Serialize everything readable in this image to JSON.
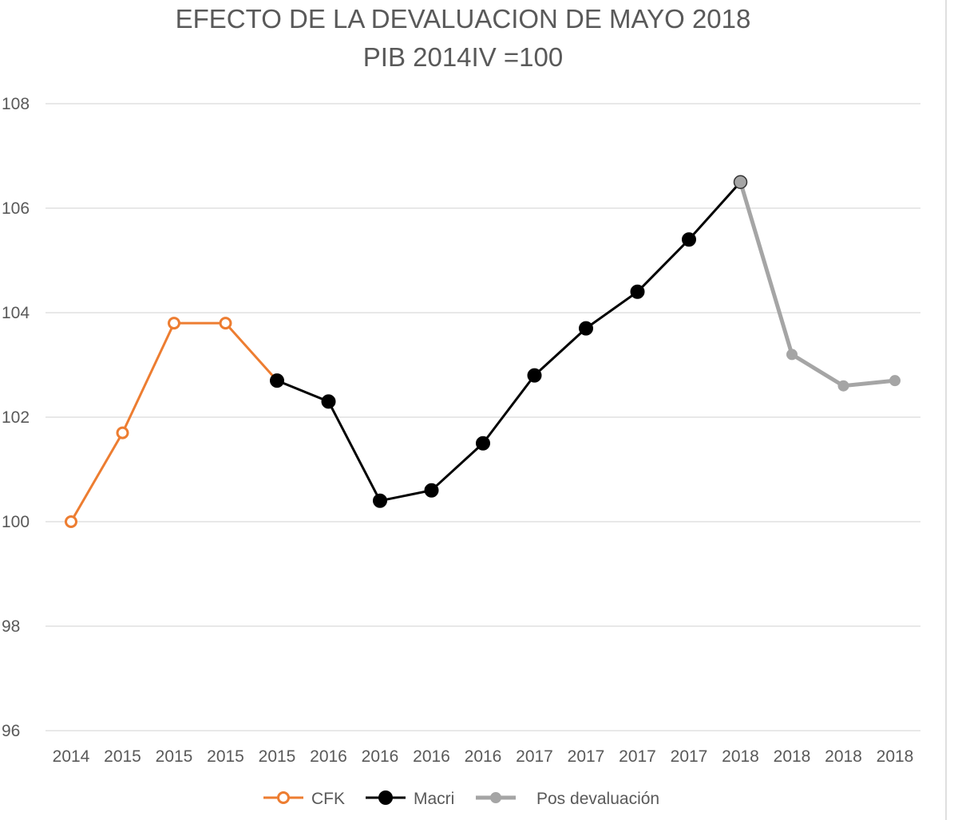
{
  "chart_data": {
    "type": "line",
    "title": "EFECTO DE LA DEVALUACION DE MAYO 2018",
    "subtitle": "PIB 2014IV =100",
    "xlabel": "",
    "ylabel": "",
    "categories": [
      "2014",
      "2015",
      "2015",
      "2015",
      "2015",
      "2016",
      "2016",
      "2016",
      "2016",
      "2017",
      "2017",
      "2017",
      "2017",
      "2018",
      "2018",
      "2018",
      "2018"
    ],
    "ylim": [
      96,
      108
    ],
    "yticks": [
      96,
      98,
      100,
      102,
      104,
      106,
      108
    ],
    "grid": true,
    "legend_position": "bottom",
    "series": [
      {
        "name": "CFK",
        "color": "#ED7D31",
        "marker": "hollow-circle",
        "values": [
          100.0,
          101.7,
          103.8,
          103.8,
          102.7,
          null,
          null,
          null,
          null,
          null,
          null,
          null,
          null,
          null,
          null,
          null,
          null
        ]
      },
      {
        "name": "Macri",
        "color": "#000000",
        "marker": "filled-circle",
        "values": [
          null,
          null,
          null,
          null,
          102.7,
          102.3,
          100.4,
          100.6,
          101.5,
          102.8,
          103.7,
          104.4,
          105.4,
          106.5,
          null,
          null,
          null
        ]
      },
      {
        "name": "Pos devaluación",
        "color": "#A5A5A5",
        "marker": "filled-circle",
        "values": [
          null,
          null,
          null,
          null,
          null,
          null,
          null,
          null,
          null,
          null,
          null,
          null,
          null,
          106.5,
          103.2,
          102.6,
          102.7
        ]
      }
    ]
  }
}
